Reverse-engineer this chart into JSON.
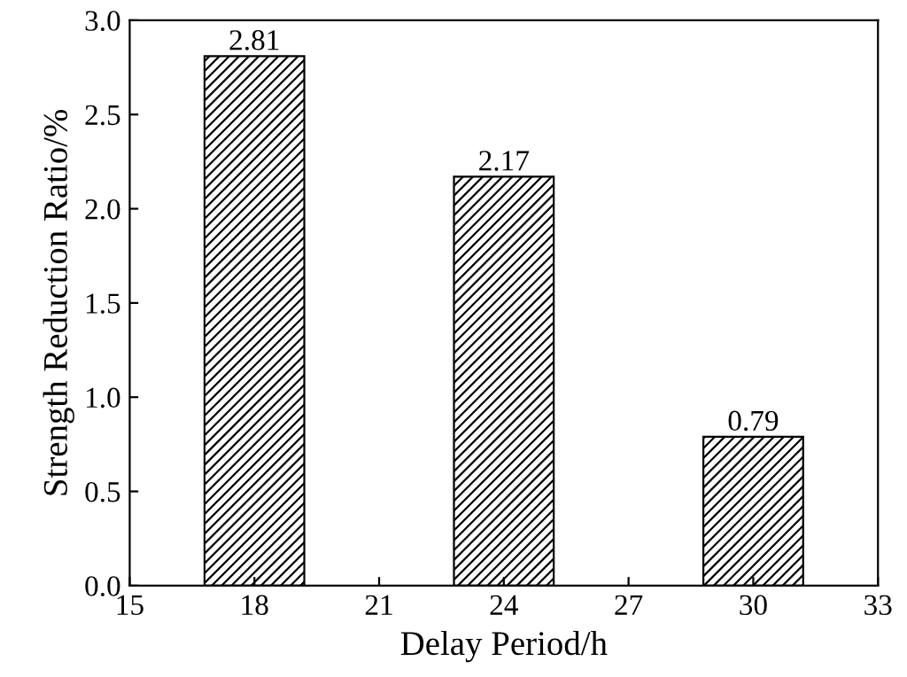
{
  "chart_data": {
    "type": "bar",
    "xlabel": "Delay Period/h",
    "ylabel": "Strength Reduction Ratio/%",
    "x": [
      18,
      24,
      30
    ],
    "values": [
      2.81,
      2.17,
      0.79
    ],
    "color": "#000000",
    "data_labels": true,
    "xlim": [
      15,
      33
    ],
    "xticks": [
      15,
      18,
      21,
      24,
      27,
      30,
      33
    ],
    "ylim": [
      0,
      3.0
    ],
    "yticks": [
      {
        "value": 0,
        "label": "0.0"
      },
      {
        "value": 0.5,
        "label": "0.5"
      },
      {
        "value": 1.0,
        "label": "1.0"
      },
      {
        "value": 1.5,
        "label": "1.5"
      },
      {
        "value": 2.0,
        "label": "2.0"
      },
      {
        "value": 2.5,
        "label": "2.5"
      },
      {
        "value": 3.0,
        "label": "3.0"
      }
    ],
    "grid": false,
    "legend": false
  }
}
